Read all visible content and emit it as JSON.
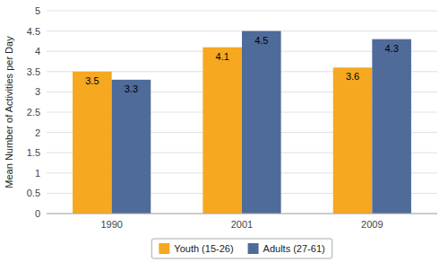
{
  "chart_data": {
    "type": "bar",
    "categories": [
      "1990",
      "2001",
      "2009"
    ],
    "series": [
      {
        "name": "Youth (15-26)",
        "color": "#F5A820",
        "values": [
          3.5,
          4.1,
          3.6
        ]
      },
      {
        "name": "Adults (27-61)",
        "color": "#4E6B9A",
        "values": [
          3.3,
          4.5,
          4.3
        ]
      }
    ],
    "y_label": "Mean Number of Activities per Day",
    "ylim": [
      0,
      5
    ],
    "yticks": [
      0,
      0.5,
      1,
      1.5,
      2,
      2.5,
      3,
      3.5,
      4,
      4.5,
      5
    ],
    "grid": true,
    "legend": "bottom",
    "data_labels": true
  }
}
